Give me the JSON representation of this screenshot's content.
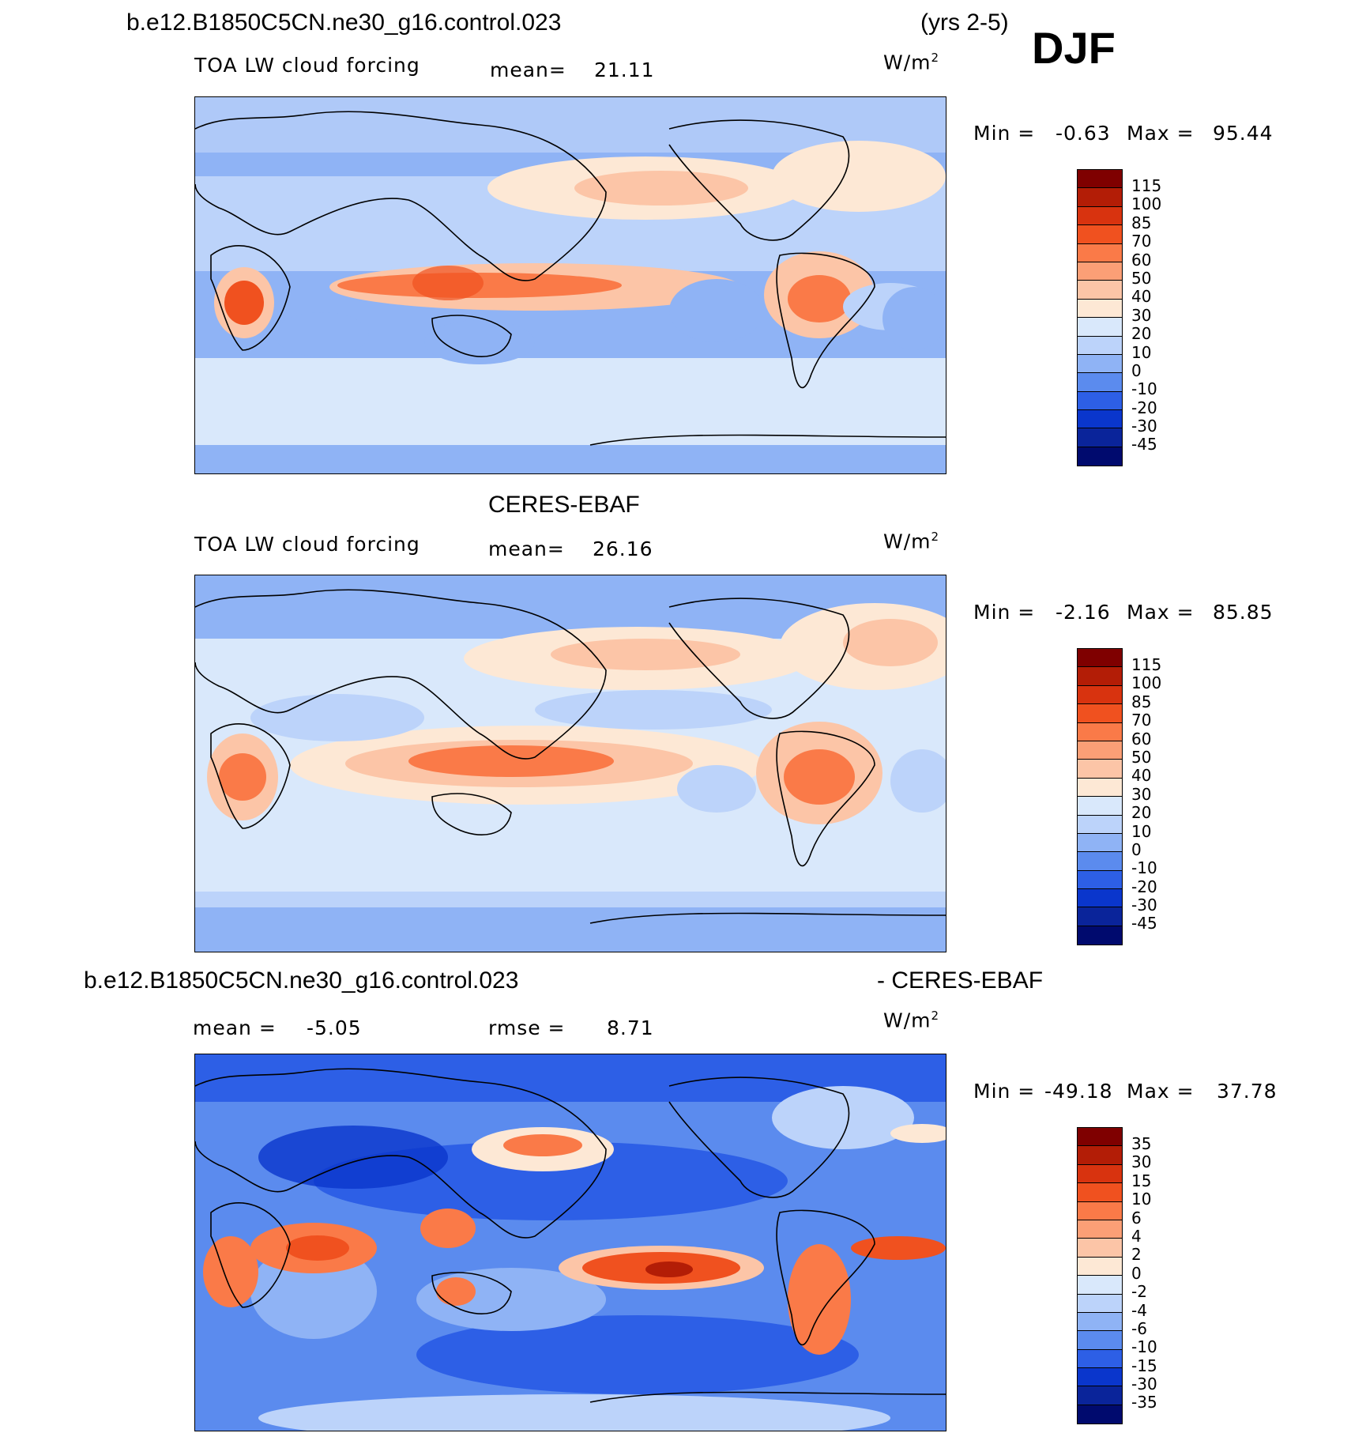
{
  "header": {
    "case_name": "b.e12.B1850C5CN.ne30_g16.control.023",
    "years": "(yrs 2-5)",
    "season": "DJF"
  },
  "panels": [
    {
      "title": "",
      "variable": "TOA LW cloud forcing",
      "mean_label": "mean=",
      "mean_value": "21.11",
      "units_prefix": "W/m",
      "units_exp": "2",
      "min_label": "Min =",
      "min_value": "-0.63",
      "max_label": "Max =",
      "max_value": "95.44",
      "colorbar_levels": [
        "115",
        "100",
        "85",
        "70",
        "60",
        "50",
        "40",
        "30",
        "20",
        "10",
        "0",
        "-10",
        "-20",
        "-30",
        "-45"
      ]
    },
    {
      "title": "CERES-EBAF",
      "variable": "TOA LW cloud forcing",
      "mean_label": "mean=",
      "mean_value": "26.16",
      "units_prefix": "W/m",
      "units_exp": "2",
      "min_label": "Min =",
      "min_value": "-2.16",
      "max_label": "Max =",
      "max_value": "85.85",
      "colorbar_levels": [
        "115",
        "100",
        "85",
        "70",
        "60",
        "50",
        "40",
        "30",
        "20",
        "10",
        "0",
        "-10",
        "-20",
        "-30",
        "-45"
      ]
    },
    {
      "title_left": "b.e12.B1850C5CN.ne30_g16.control.023",
      "title_right": "- CERES-EBAF",
      "mean_label": "mean =",
      "mean_value": "-5.05",
      "rmse_label": "rmse =",
      "rmse_value": "8.71",
      "units_prefix": "W/m",
      "units_exp": "2",
      "min_label": "Min =",
      "min_value": "-49.18",
      "max_label": "Max =",
      "max_value": "37.78",
      "colorbar_levels": [
        "35",
        "30",
        "15",
        "10",
        "6",
        "4",
        "2",
        "0",
        "-2",
        "-4",
        "-6",
        "-10",
        "-15",
        "-30",
        "-35"
      ]
    }
  ],
  "colorbar_colors": [
    "#7f0000",
    "#b31d06",
    "#d8330f",
    "#f0511f",
    "#fa7a48",
    "#fb9f76",
    "#fcc5a7",
    "#fde8d5",
    "#d9e8fb",
    "#bcd3fa",
    "#8fb3f5",
    "#5b8bee",
    "#2d5fe6",
    "#0a36cc",
    "#0a249a",
    "#000a6e"
  ]
}
